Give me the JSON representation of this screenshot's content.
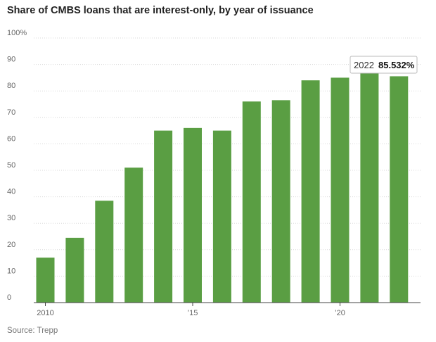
{
  "title": "Share of CMBS loans that are interest-only, by year of issuance",
  "source": "Source: Trepp",
  "tooltip": {
    "year": "2022",
    "value": "85.532%"
  },
  "colors": {
    "bar": "#5a9e43",
    "grid": "#d9d9d9",
    "axis": "#666666"
  },
  "chart_data": {
    "type": "bar",
    "title": "Share of CMBS loans that are interest-only, by year of issuance",
    "xlabel": "",
    "ylabel": "",
    "categories": [
      "2010",
      "2011",
      "2012",
      "2013",
      "2014",
      "2015",
      "2016",
      "2017",
      "2018",
      "2019",
      "2020",
      "2021",
      "2022"
    ],
    "values": [
      17,
      24.5,
      38.5,
      51,
      65,
      66,
      65,
      76,
      76.5,
      84,
      85,
      87,
      85.532
    ],
    "ylim": [
      0,
      100
    ],
    "yticks": [
      "0",
      "10",
      "20",
      "30",
      "40",
      "50",
      "60",
      "70",
      "80",
      "90",
      "100%"
    ],
    "xticks": [
      {
        "label": "2010",
        "category": "2010"
      },
      {
        "label": "’15",
        "category": "2015"
      },
      {
        "label": "’20",
        "category": "2020"
      }
    ],
    "grid": true,
    "legend": "none"
  }
}
